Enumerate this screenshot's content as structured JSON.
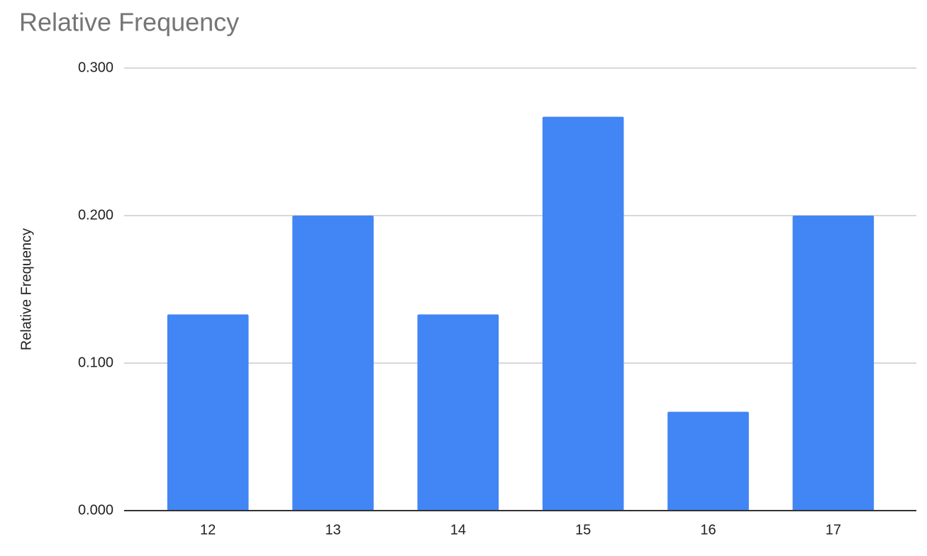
{
  "chart_data": {
    "type": "bar",
    "title": "Relative Frequency",
    "y_label": "Relative Frequency",
    "categories": [
      "12",
      "13",
      "14",
      "15",
      "16",
      "17"
    ],
    "values": [
      0.133,
      0.2,
      0.133,
      0.267,
      0.067,
      0.2
    ],
    "color": "#4285f4",
    "ylim": [
      0,
      0.3
    ],
    "yticks": [
      {
        "value": 0,
        "label": "0.000"
      },
      {
        "value": 0.1,
        "label": "0.100"
      },
      {
        "value": 0.2,
        "label": "0.200"
      },
      {
        "value": 0.3,
        "label": "0.300"
      }
    ],
    "grid": true
  }
}
